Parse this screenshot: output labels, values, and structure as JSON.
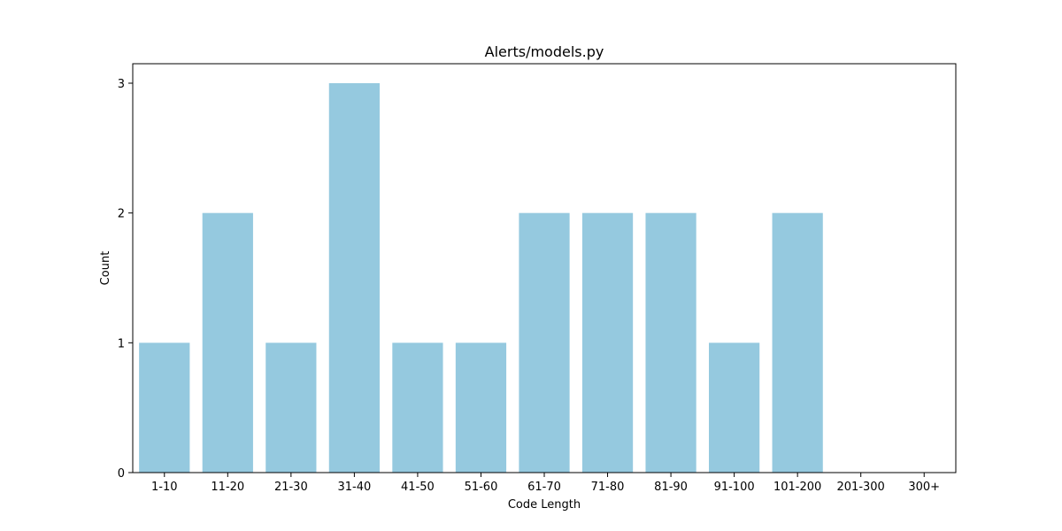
{
  "chart_data": {
    "type": "bar",
    "title": "Alerts/models.py",
    "xlabel": "Code Length",
    "ylabel": "Count",
    "categories": [
      "1-10",
      "11-20",
      "21-30",
      "31-40",
      "41-50",
      "51-60",
      "61-70",
      "71-80",
      "81-90",
      "91-100",
      "101-200",
      "201-300",
      "300+"
    ],
    "values": [
      1,
      2,
      1,
      3,
      1,
      1,
      2,
      2,
      2,
      1,
      2,
      0,
      0
    ],
    "ylim": [
      0,
      3.15
    ],
    "yticks": [
      0,
      1,
      2,
      3
    ],
    "bar_color": "#95c9df",
    "grid": false,
    "legend": "none"
  }
}
